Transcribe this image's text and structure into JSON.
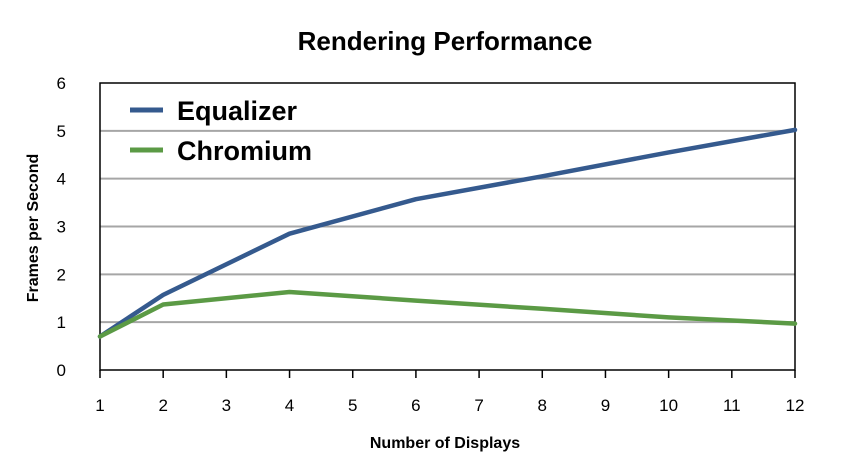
{
  "chart_data": {
    "type": "line",
    "title": "Rendering Performance",
    "xlabel": "Number of Displays",
    "ylabel": "Frames per Second",
    "x_ticks": [
      1,
      2,
      3,
      4,
      5,
      6,
      7,
      8,
      9,
      10,
      11,
      12
    ],
    "y_ticks": [
      0,
      1,
      2,
      3,
      4,
      5,
      6
    ],
    "xlim": [
      1,
      12
    ],
    "ylim": [
      0,
      6
    ],
    "grid": true,
    "legend_position": "top-left",
    "series": [
      {
        "name": "Equalizer",
        "color": "#355a8e",
        "x": [
          1,
          2,
          4,
          6,
          8,
          10,
          12
        ],
        "y": [
          0.7,
          1.57,
          2.85,
          3.57,
          4.05,
          4.55,
          5.02
        ]
      },
      {
        "name": "Chromium",
        "color": "#5b9a45",
        "x": [
          1,
          2,
          4,
          6,
          8,
          10,
          12
        ],
        "y": [
          0.7,
          1.37,
          1.63,
          1.45,
          1.28,
          1.1,
          0.97
        ]
      }
    ]
  }
}
